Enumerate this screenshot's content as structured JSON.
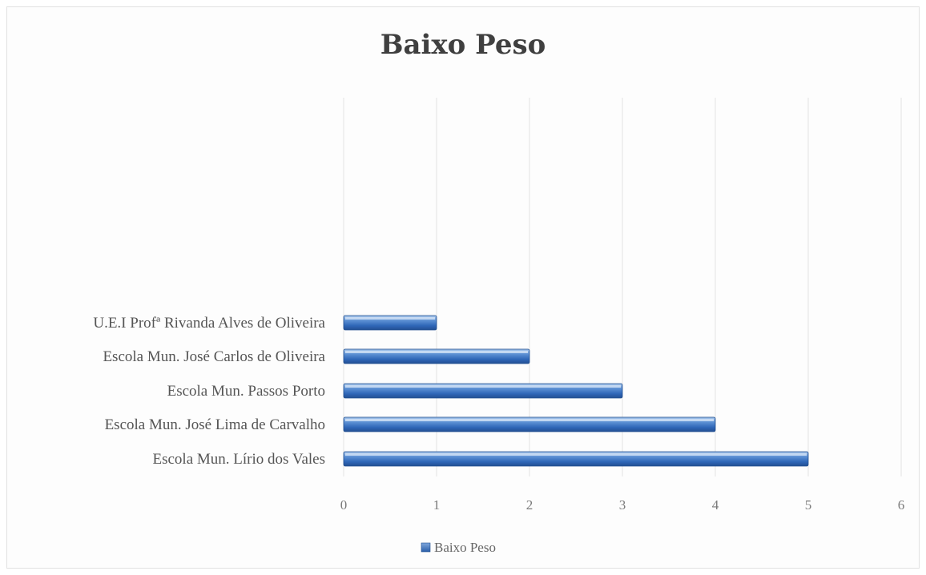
{
  "chart_data": {
    "type": "bar",
    "orientation": "horizontal",
    "title": "Baixo Peso",
    "categories": [
      "U.E.I Profª Rivanda Alves de Oliveira",
      "Escola Mun. José Carlos de Oliveira",
      "Escola Mun. Passos Porto",
      "Escola Mun. José Lima de Carvalho",
      "Escola Mun. Lírio dos Vales"
    ],
    "series": [
      {
        "name": "Baixo Peso",
        "values": [
          1,
          2,
          3,
          4,
          5
        ],
        "color": "#4f81bd"
      }
    ],
    "xlim": [
      0,
      6
    ],
    "xticks": [
      "0",
      "1",
      "2",
      "3",
      "4",
      "5",
      "6"
    ],
    "grid": true,
    "legend": "bottom"
  }
}
